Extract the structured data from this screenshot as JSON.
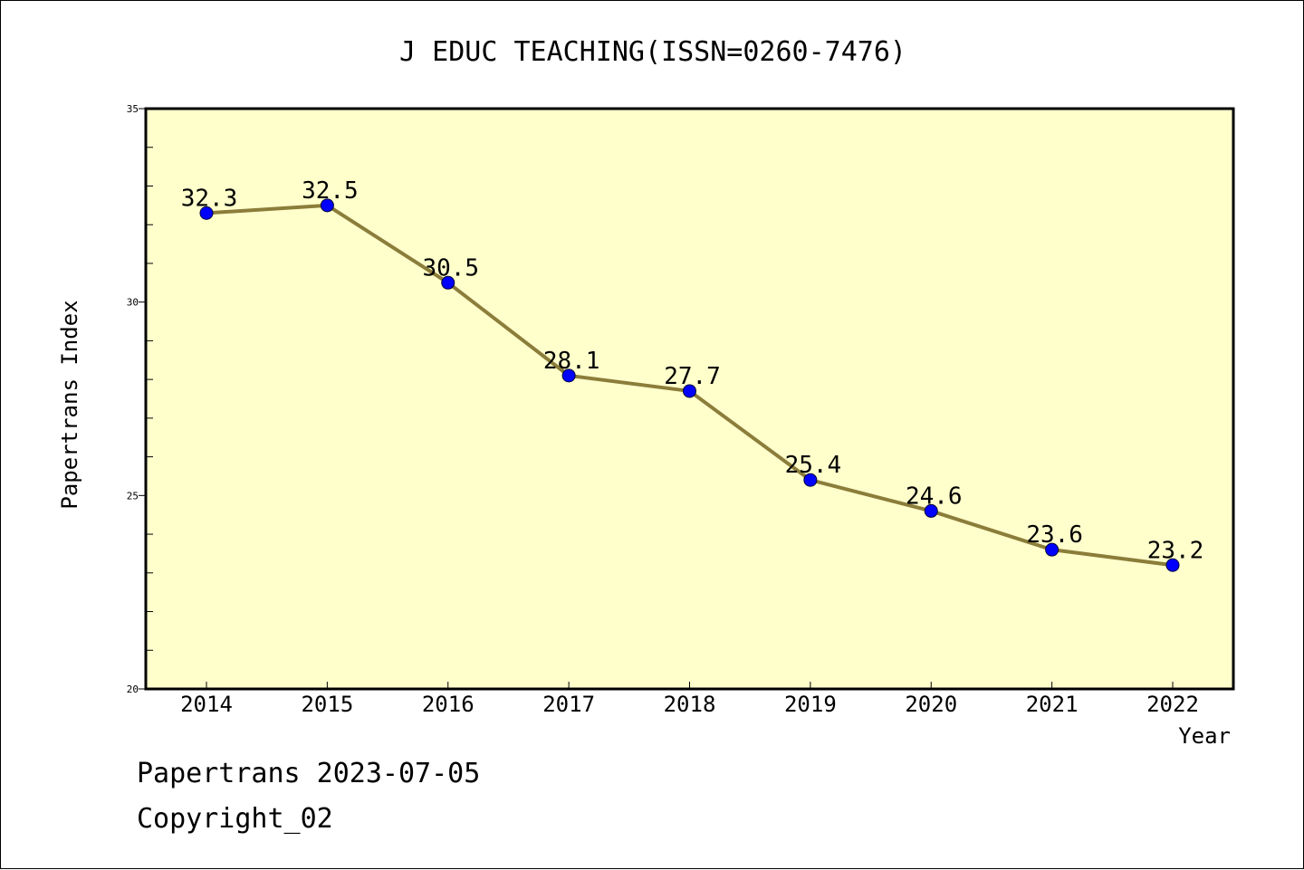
{
  "footer": {
    "date_line": "Papertrans 2023-07-05",
    "copyright": "Copyright_02"
  },
  "colors": {
    "plot_background": "#ffffcc",
    "line": "#8b7d3a",
    "marker": "#0000ff"
  },
  "chart_data": {
    "type": "line",
    "title": "J EDUC TEACHING(ISSN=0260-7476)",
    "xlabel": "Year",
    "ylabel": "Papertrans Index",
    "categories": [
      "2014",
      "2015",
      "2016",
      "2017",
      "2018",
      "2019",
      "2020",
      "2021",
      "2022"
    ],
    "series": [
      {
        "values": [
          32.3,
          32.5,
          30.5,
          28.1,
          27.7,
          25.4,
          24.6,
          23.6,
          23.2
        ],
        "labels": [
          "32.3",
          "32.5",
          "30.5",
          "28.1",
          "27.7",
          "25.4",
          "24.6",
          "23.6",
          "23.2"
        ]
      }
    ],
    "ylim": [
      20,
      35
    ],
    "yticks": [
      "20",
      "25",
      "30",
      "35"
    ],
    "y_minor_step": 1,
    "grid": false,
    "legend": "none"
  }
}
